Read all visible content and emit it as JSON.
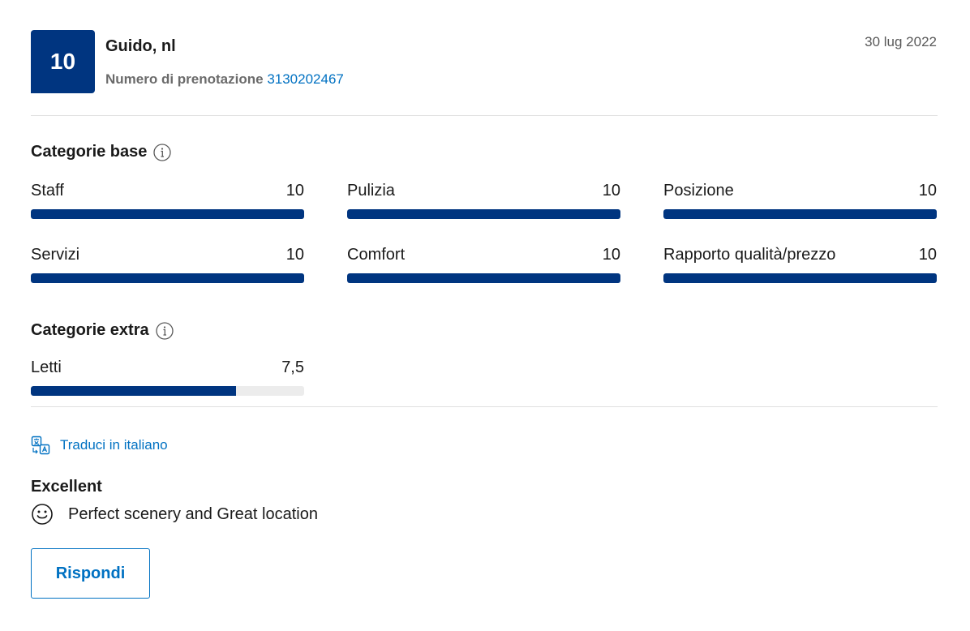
{
  "header": {
    "score": "10",
    "reviewer": "Guido, nl",
    "booking_label": "Numero di prenotazione",
    "booking_number": "3130202467",
    "date": "30 lug 2022"
  },
  "base_categories": {
    "title": "Categorie base",
    "items": [
      {
        "label": "Staff",
        "value": "10",
        "fraction": 1.0
      },
      {
        "label": "Pulizia",
        "value": "10",
        "fraction": 1.0
      },
      {
        "label": "Posizione",
        "value": "10",
        "fraction": 1.0
      },
      {
        "label": "Servizi",
        "value": "10",
        "fraction": 1.0
      },
      {
        "label": "Comfort",
        "value": "10",
        "fraction": 1.0
      },
      {
        "label": "Rapporto qualità/prezzo",
        "value": "10",
        "fraction": 1.0
      }
    ]
  },
  "extra_categories": {
    "title": "Categorie extra",
    "items": [
      {
        "label": "Letti",
        "value": "7,5",
        "fraction": 0.75
      }
    ]
  },
  "translate": {
    "label": "Traduci in italiano",
    "icon": "translate-icon"
  },
  "review": {
    "title": "Excellent",
    "positive_icon": "smiley-icon",
    "positive_text": "Perfect scenery and Great location"
  },
  "actions": {
    "reply_label": "Rispondi"
  },
  "colors": {
    "accent": "#003580",
    "link": "#0071c2",
    "track": "#ececec"
  }
}
